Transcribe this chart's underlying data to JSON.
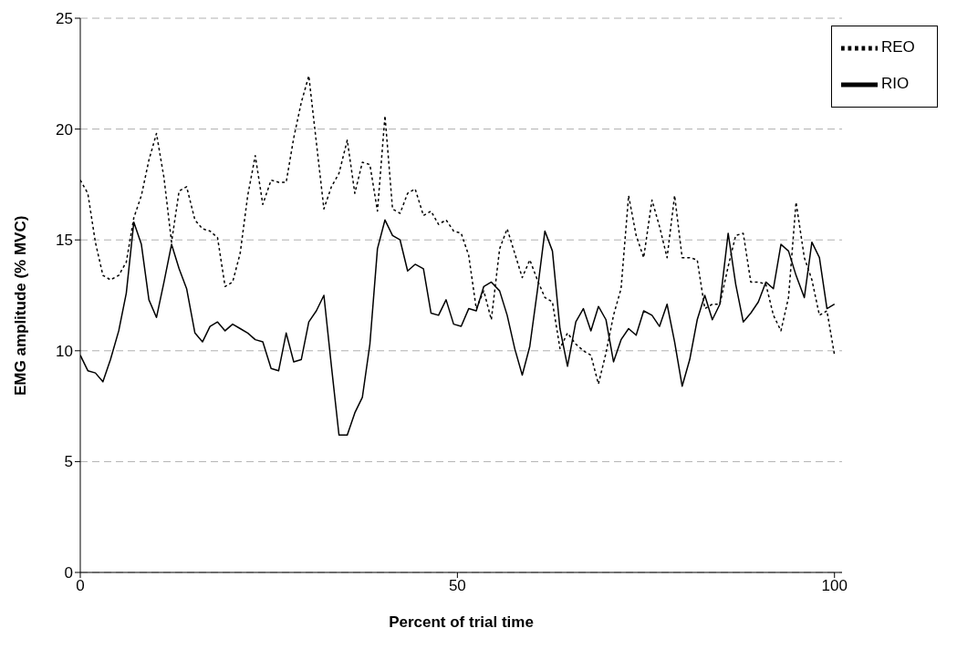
{
  "chart_data": {
    "type": "line",
    "xlabel": "Percent of trial time",
    "ylabel": "EMG amplitude (% MVC)",
    "x": [
      0,
      1,
      2,
      3,
      4,
      5.1,
      6.1,
      7.1,
      8.1,
      9.1,
      10.1,
      11.1,
      12.1,
      13.1,
      14.1,
      15.2,
      16.2,
      17.2,
      18.2,
      19.2,
      20.2,
      21.2,
      22.2,
      23.2,
      24.2,
      25.3,
      26.3,
      27.3,
      28.3,
      29.3,
      30.3,
      31.3,
      32.3,
      33.3,
      34.3,
      35.4,
      36.4,
      37.4,
      38.4,
      39.4,
      40.4,
      41.4,
      42.4,
      43.4,
      44.4,
      45.5,
      46.5,
      47.5,
      48.5,
      49.5,
      50.5,
      51.5,
      52.5,
      53.5,
      54.5,
      55.6,
      56.6,
      57.6,
      58.6,
      59.6,
      60.6,
      61.6,
      62.6,
      63.6,
      64.6,
      65.7,
      66.7,
      67.7,
      68.7,
      69.7,
      70.7,
      71.7,
      72.7,
      73.7,
      74.7,
      75.8,
      76.8,
      77.8,
      78.8,
      79.8,
      80.8,
      81.8,
      82.8,
      83.8,
      84.8,
      85.9,
      86.9,
      87.9,
      88.9,
      89.9,
      90.9,
      91.9,
      92.9,
      93.9,
      94.9,
      96,
      97,
      98,
      99,
      100
    ],
    "series": [
      {
        "name": "RIO",
        "color": "#000000",
        "line_style": "solid",
        "values": [
          9.8,
          9.1,
          9,
          8.6,
          9.6,
          10.9,
          12.6,
          15.8,
          14.8,
          12.3,
          11.5,
          13.1,
          14.8,
          13.7,
          12.8,
          10.8,
          10.4,
          11.1,
          11.3,
          10.9,
          11.2,
          11,
          10.8,
          10.5,
          10.4,
          9.2,
          9.1,
          10.8,
          9.5,
          9.6,
          11.3,
          11.8,
          12.5,
          9.3,
          6.2,
          6.2,
          7.2,
          7.9,
          10.3,
          14.6,
          15.9,
          15.2,
          15,
          13.6,
          13.9,
          13.7,
          11.7,
          11.6,
          12.3,
          11.2,
          11.1,
          11.9,
          11.8,
          12.9,
          13.1,
          12.7,
          11.6,
          10.1,
          8.9,
          10.2,
          12.7,
          15.4,
          14.5,
          11,
          9.3,
          11.3,
          11.9,
          10.9,
          12,
          11.4,
          9.5,
          10.5,
          11,
          10.7,
          11.8,
          11.6,
          11.1,
          12.1,
          10.4,
          8.4,
          9.6,
          11.4,
          12.5,
          11.4,
          12.1,
          15.3,
          13,
          11.3,
          11.7,
          12.2,
          13.1,
          12.8,
          14.8,
          14.5,
          13.4,
          12.4,
          14.9,
          14.2,
          11.9,
          12.1
        ]
      },
      {
        "name": "REO",
        "color": "#000000",
        "line_style": "dotted",
        "values": [
          17.7,
          17.1,
          14.9,
          13.4,
          13.2,
          13.4,
          14,
          16,
          17,
          18.6,
          19.8,
          17.8,
          14.9,
          17.2,
          17.4,
          15.9,
          15.5,
          15.4,
          15.1,
          12.9,
          13.1,
          14.4,
          17,
          18.8,
          16.6,
          17.7,
          17.6,
          17.6,
          19.6,
          21.2,
          22.4,
          19.4,
          16.4,
          17.4,
          18,
          19.5,
          17.1,
          18.5,
          18.4,
          16.3,
          20.6,
          16.4,
          16.2,
          17.1,
          17.3,
          16.1,
          16.3,
          15.7,
          15.9,
          15.4,
          15.3,
          14.3,
          11.9,
          12.7,
          11.4,
          14.6,
          15.5,
          14.4,
          13.3,
          14.1,
          13.2,
          12.4,
          12.2,
          10.1,
          10.8,
          10.3,
          10,
          9.8,
          8.5,
          9.9,
          11.6,
          12.8,
          17,
          15.2,
          14.2,
          16.8,
          15.6,
          14.2,
          17,
          14.2,
          14.2,
          14.1,
          11.9,
          12.1,
          12.1,
          13.8,
          15.2,
          15.3,
          13.1,
          13.1,
          13,
          11.6,
          10.9,
          12.4,
          16.7,
          14.2,
          13.2,
          11.6,
          11.8,
          9.8
        ]
      }
    ],
    "xlim": [
      0,
      101
    ],
    "xticks": [
      0,
      50,
      100
    ],
    "ylim": [
      0,
      25
    ],
    "yticks": [
      0,
      5,
      10,
      15,
      20,
      25
    ],
    "grid": "y",
    "legend": "top right",
    "marker": "none"
  }
}
